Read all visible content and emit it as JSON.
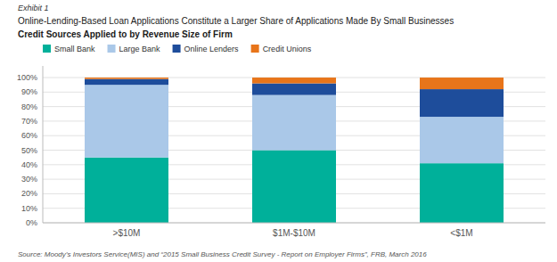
{
  "chart_data": {
    "type": "bar",
    "stacked": true,
    "title": "Online-Lending-Based Loan Applications Constitute a Larger Share of Applications Made By Small Businesses",
    "subtitle": "Credit Sources Applied to by Revenue Size of Firm",
    "annotations": [
      "Exhibit 1",
      "Source: Moody’s Investors Service(MIS) and “2015 Small Business Credit Survey - Report on Employer Firms”, FRB, March 2016"
    ],
    "categories": [
      ">$10M",
      "$1M-$10M",
      "<$1M"
    ],
    "series": [
      {
        "name": "Small Bank",
        "color": "#00b09a",
        "values": [
          45,
          50,
          41
        ]
      },
      {
        "name": "Large Bank",
        "color": "#aac8e8",
        "values": [
          50,
          38,
          32
        ]
      },
      {
        "name": "Online Lenders",
        "color": "#1e4d9b",
        "values": [
          4,
          8,
          19
        ]
      },
      {
        "name": "Credit Unions",
        "color": "#e8751a",
        "values": [
          1,
          4,
          8
        ]
      }
    ],
    "ylim": [
      0,
      108
    ],
    "yticks": [
      {
        "value": 0,
        "label": "0%"
      },
      {
        "value": 10,
        "label": "10%"
      },
      {
        "value": 20,
        "label": "20%"
      },
      {
        "value": 30,
        "label": "30%"
      },
      {
        "value": 40,
        "label": "40%"
      },
      {
        "value": 50,
        "label": "50%"
      },
      {
        "value": 60,
        "label": "60%"
      },
      {
        "value": 70,
        "label": "70%"
      },
      {
        "value": 80,
        "label": "80%"
      },
      {
        "value": 90,
        "label": "90%"
      },
      {
        "value": 100,
        "label": "100%"
      }
    ],
    "grid": true,
    "legend": "top-left"
  }
}
